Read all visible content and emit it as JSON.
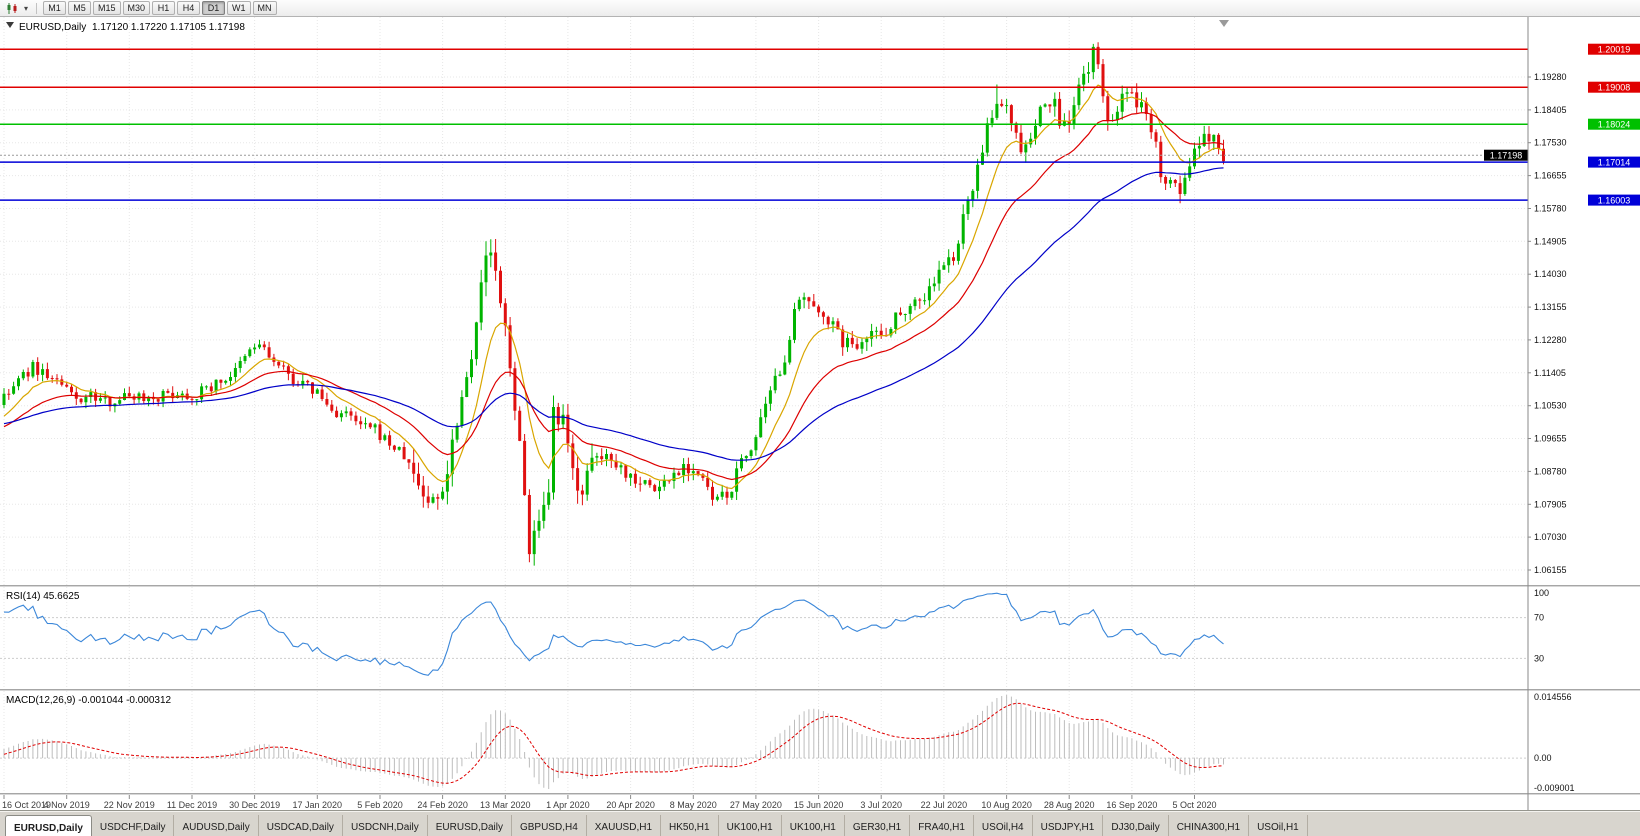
{
  "toolbar": {
    "chart_type_icon": "candlestick-chart-icon",
    "dropdown_icon": "chevron-down-icon",
    "periods": [
      {
        "label": "M1",
        "active": false
      },
      {
        "label": "M5",
        "active": false
      },
      {
        "label": "M15",
        "active": false
      },
      {
        "label": "M30",
        "active": false
      },
      {
        "label": "H1",
        "active": false
      },
      {
        "label": "H4",
        "active": false
      },
      {
        "label": "D1",
        "active": true
      },
      {
        "label": "W1",
        "active": false
      },
      {
        "label": "MN",
        "active": false
      }
    ]
  },
  "chart": {
    "title_symbol": "EURUSD,Daily",
    "title_ohlc": "1.17120 1.17220 1.17105 1.17198",
    "bid_label": "1.17198"
  },
  "chart_data": {
    "type": "candlestick",
    "symbol": "EURUSD",
    "timeframe": "Daily",
    "ohlc_display": {
      "open": "1.17120",
      "high": "1.17220",
      "low": "1.17105",
      "close": "1.17198"
    },
    "bid": 1.17198,
    "candle_count": 254,
    "colors": {
      "up": "#00b400",
      "down": "#e01010",
      "grid": "#e7e7e7",
      "rsi": "#3b87d9",
      "macd_hist": "#bdbdbd",
      "macd_signal": "#e00000",
      "bid_box": "#000000",
      "bid_line": "#9a9a9a"
    },
    "y_axis": {
      "ticks": [
        "1.19280",
        "1.18405",
        "1.17530",
        "1.16655",
        "1.15780",
        "1.14905",
        "1.14030",
        "1.13155",
        "1.12280",
        "1.11405",
        "1.10530",
        "1.09655",
        "1.08780",
        "1.07905",
        "1.07030",
        "1.06155"
      ]
    },
    "x_axis": {
      "candles_per_label": 13,
      "labels": [
        "16 Oct 2019",
        "4 Nov 2019",
        "22 Nov 2019",
        "11 Dec 2019",
        "30 Dec 2019",
        "17 Jan 2020",
        "5 Feb 2020",
        "24 Feb 2020",
        "13 Mar 2020",
        "1 Apr 2020",
        "20 Apr 2020",
        "8 May 2020",
        "27 May 2020",
        "15 Jun 2020",
        "3 Jul 2020",
        "22 Jul 2020",
        "10 Aug 2020",
        "28 Aug 2020",
        "16 Sep 2020",
        "5 Oct 2020"
      ]
    },
    "levels": [
      {
        "price": 1.20019,
        "color": "#e00000",
        "label": "1.20019"
      },
      {
        "price": 1.19008,
        "color": "#e00000",
        "label": "1.19008"
      },
      {
        "price": 1.18024,
        "color": "#00c000",
        "label": "1.18024"
      },
      {
        "price": 1.17014,
        "color": "#0000d8",
        "label": "1.17014"
      },
      {
        "price": 1.16003,
        "color": "#0000d8",
        "label": "1.16003"
      }
    ],
    "moving_averages": [
      {
        "period": 10,
        "color": "#d9a600"
      },
      {
        "period": 25,
        "color": "#dd0000"
      },
      {
        "period": 60,
        "color": "#0000c8"
      }
    ],
    "rsi": {
      "label": "RSI(14) 45.6625",
      "period": 14,
      "value": 45.6625,
      "levels": [
        70,
        30
      ],
      "axis_labels": [
        "100",
        "70",
        "30"
      ]
    },
    "macd": {
      "label": "MACD(12,26,9) -0.001044 -0.000312",
      "fast": 12,
      "slow": 26,
      "signal": 9,
      "values": [
        -0.001044,
        -0.000312
      ],
      "axis_labels": [
        "0.014556",
        "0.00",
        "-0.009001"
      ]
    },
    "warmup_anchors": [
      [
        -60,
        1.111
      ],
      [
        -45,
        1.1052
      ],
      [
        -30,
        1.0932
      ],
      [
        -22,
        1.0902
      ],
      [
        -15,
        1.0992
      ],
      [
        -8,
        1.0962
      ],
      [
        -1,
        1.106
      ]
    ],
    "price_anchors": [
      [
        0,
        1.107
      ],
      [
        3,
        1.112
      ],
      [
        6,
        1.1155
      ],
      [
        9,
        1.1135
      ],
      [
        12,
        1.1105
      ],
      [
        15,
        1.107
      ],
      [
        18,
        1.1078
      ],
      [
        21,
        1.1062
      ],
      [
        24,
        1.1075
      ],
      [
        27,
        1.1082
      ],
      [
        30,
        1.1075
      ],
      [
        33,
        1.108
      ],
      [
        36,
        1.1088
      ],
      [
        39,
        1.1078
      ],
      [
        42,
        1.1098
      ],
      [
        45,
        1.1118
      ],
      [
        48,
        1.1142
      ],
      [
        51,
        1.1198
      ],
      [
        53,
        1.1218
      ],
      [
        56,
        1.1168
      ],
      [
        59,
        1.1132
      ],
      [
        62,
        1.1108
      ],
      [
        65,
        1.1088
      ],
      [
        68,
        1.1038
      ],
      [
        71,
        1.1028
      ],
      [
        74,
        1.0998
      ],
      [
        77,
        1.0988
      ],
      [
        80,
        1.0952
      ],
      [
        83,
        1.0918
      ],
      [
        86,
        1.0848
      ],
      [
        88,
        1.0792
      ],
      [
        90,
        1.0812
      ],
      [
        92,
        1.0882
      ],
      [
        94,
        1.1032
      ],
      [
        96,
        1.1132
      ],
      [
        98,
        1.1288
      ],
      [
        100,
        1.1438
      ],
      [
        101,
        1.1472
      ],
      [
        103,
        1.1312
      ],
      [
        105,
        1.1182
      ],
      [
        107,
        1.0932
      ],
      [
        109,
        1.0688
      ],
      [
        111,
        1.0728
      ],
      [
        113,
        1.0792
      ],
      [
        114,
        1.1022
      ],
      [
        116,
        1.0998
      ],
      [
        118,
        1.0872
      ],
      [
        120,
        1.0838
      ],
      [
        123,
        1.0908
      ],
      [
        126,
        1.0922
      ],
      [
        129,
        1.0872
      ],
      [
        132,
        1.0858
      ],
      [
        135,
        1.0828
      ],
      [
        138,
        1.0858
      ],
      [
        141,
        1.0898
      ],
      [
        144,
        1.0872
      ],
      [
        147,
        1.0802
      ],
      [
        150,
        1.0808
      ],
      [
        153,
        1.0902
      ],
      [
        156,
        1.0968
      ],
      [
        159,
        1.1078
      ],
      [
        162,
        1.1188
      ],
      [
        164,
        1.1292
      ],
      [
        166,
        1.1338
      ],
      [
        168,
        1.1298
      ],
      [
        170,
        1.1308
      ],
      [
        173,
        1.1238
      ],
      [
        176,
        1.1208
      ],
      [
        179,
        1.1252
      ],
      [
        182,
        1.1242
      ],
      [
        185,
        1.1288
      ],
      [
        188,
        1.1328
      ],
      [
        191,
        1.1342
      ],
      [
        194,
        1.1408
      ],
      [
        197,
        1.1448
      ],
      [
        200,
        1.1588
      ],
      [
        202,
        1.1702
      ],
      [
        204,
        1.1782
      ],
      [
        206,
        1.1848
      ],
      [
        208,
        1.1868
      ],
      [
        210,
        1.1758
      ],
      [
        212,
        1.1732
      ],
      [
        214,
        1.1798
      ],
      [
        216,
        1.1862
      ],
      [
        218,
        1.1848
      ],
      [
        220,
        1.1792
      ],
      [
        222,
        1.1842
      ],
      [
        224,
        1.1932
      ],
      [
        226,
        1.1988
      ],
      [
        227,
        1.1942
      ],
      [
        229,
        1.1818
      ],
      [
        231,
        1.1842
      ],
      [
        233,
        1.1878
      ],
      [
        235,
        1.1858
      ],
      [
        237,
        1.1838
      ],
      [
        239,
        1.1772
      ],
      [
        240,
        1.1682
      ],
      [
        242,
        1.1642
      ],
      [
        244,
        1.1628
      ],
      [
        246,
        1.1688
      ],
      [
        248,
        1.1742
      ],
      [
        250,
        1.1762
      ],
      [
        251,
        1.1788
      ],
      [
        252,
        1.1748
      ],
      [
        253,
        1.1722
      ]
    ],
    "forced_extremes": {
      "101": {
        "high": 1.1496
      },
      "109": {
        "low": 1.0636
      },
      "206": {
        "high": 1.1908
      },
      "226": {
        "high": 1.2008
      },
      "244": {
        "low": 1.1612
      }
    },
    "volatility_segments": [
      [
        0,
        84,
        0.0022
      ],
      [
        85,
        124,
        0.0048
      ],
      [
        125,
        158,
        0.0028
      ],
      [
        159,
        198,
        0.003
      ],
      [
        199,
        253,
        0.0035
      ]
    ]
  },
  "bottom_tabs": [
    {
      "label": "EURUSD,Daily",
      "active": true
    },
    {
      "label": "USDCHF,Daily",
      "active": false
    },
    {
      "label": "AUDUSD,Daily",
      "active": false
    },
    {
      "label": "USDCAD,Daily",
      "active": false
    },
    {
      "label": "USDCNH,Daily",
      "active": false
    },
    {
      "label": "EURUSD,Daily",
      "active": false
    },
    {
      "label": "GBPUSD,H4",
      "active": false
    },
    {
      "label": "XAUUSD,H1",
      "active": false
    },
    {
      "label": "HK50,H1",
      "active": false
    },
    {
      "label": "UK100,H1",
      "active": false
    },
    {
      "label": "UK100,H1",
      "active": false
    },
    {
      "label": "GER30,H1",
      "active": false
    },
    {
      "label": "FRA40,H1",
      "active": false
    },
    {
      "label": "USOil,H4",
      "active": false
    },
    {
      "label": "USDJPY,H1",
      "active": false
    },
    {
      "label": "DJ30,Daily",
      "active": false
    },
    {
      "label": "CHINA300,H1",
      "active": false
    },
    {
      "label": "USOil,H1",
      "active": false
    }
  ]
}
